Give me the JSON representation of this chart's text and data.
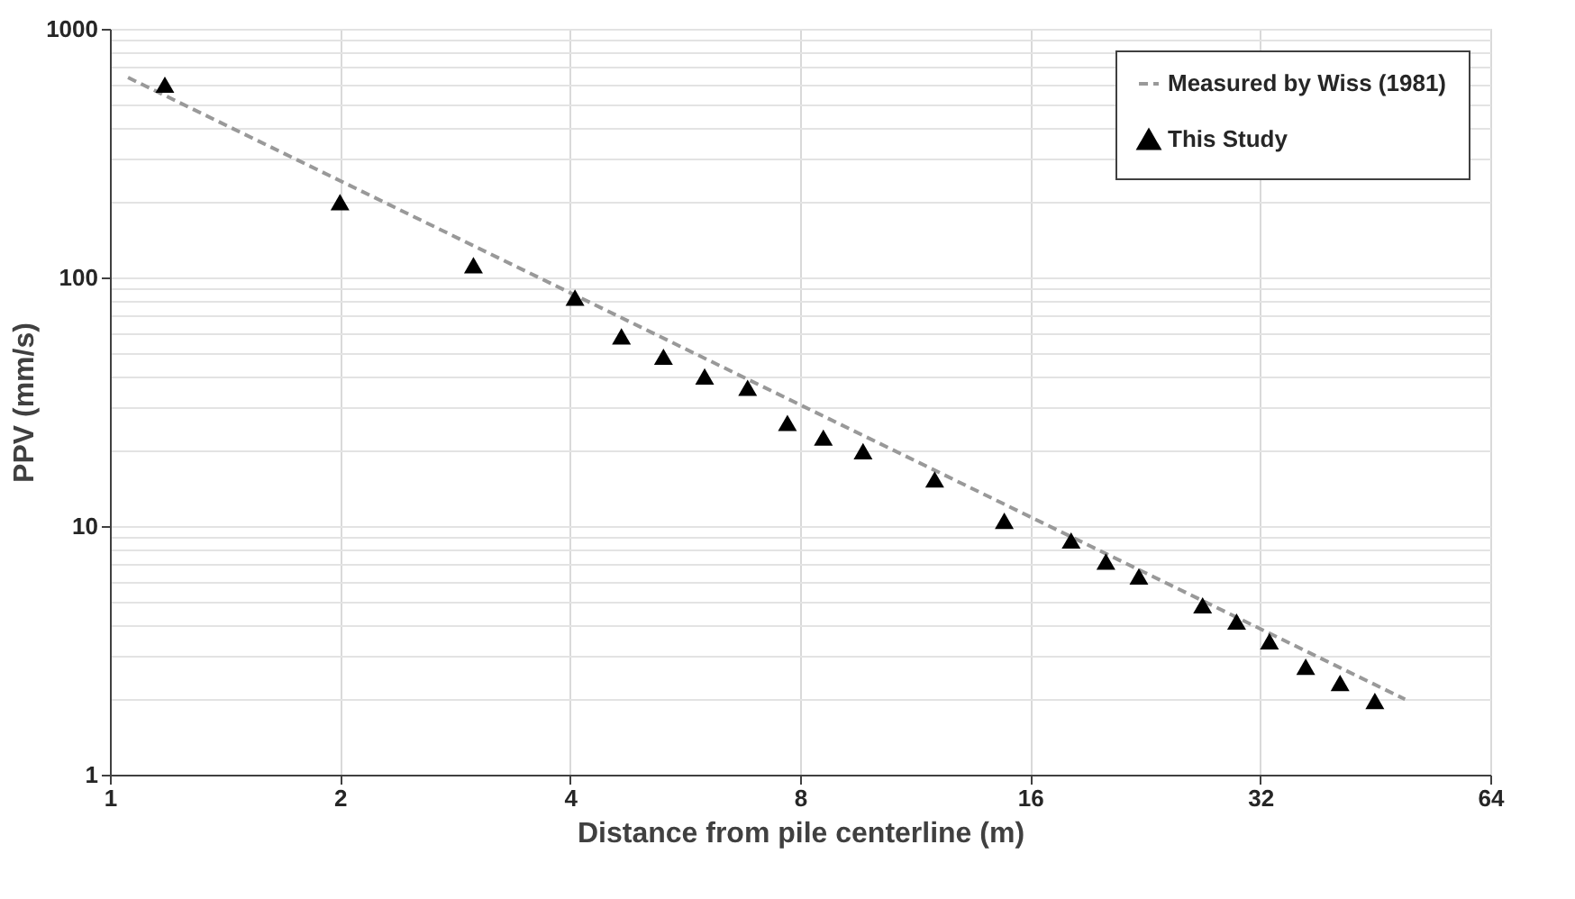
{
  "chart_data": {
    "type": "scatter",
    "xlabel": "Distance from pile centerline (m)",
    "ylabel": "PPV (mm/s)",
    "xlim": [
      1,
      64
    ],
    "xticks": [
      1,
      2,
      4,
      8,
      16,
      32,
      64
    ],
    "ylim": [
      1,
      1000
    ],
    "yticks": [
      1,
      {
        "value": 2,
        "label": null
      },
      {
        "value": 3,
        "label": null
      },
      {
        "value": 4,
        "label": null
      },
      {
        "value": 5,
        "label": null
      },
      {
        "value": 6,
        "label": null
      },
      {
        "value": 7,
        "label": null
      },
      {
        "value": 8,
        "label": null
      },
      {
        "value": 9,
        "label": null
      },
      10,
      {
        "value": 20,
        "label": null
      },
      {
        "value": 30,
        "label": null
      },
      {
        "value": 40,
        "label": null
      },
      {
        "value": 50,
        "label": null
      },
      {
        "value": 60,
        "label": null
      },
      {
        "value": 70,
        "label": null
      },
      {
        "value": 80,
        "label": null
      },
      {
        "value": 90,
        "label": null
      },
      100,
      {
        "value": 200,
        "label": null
      },
      {
        "value": 300,
        "label": null
      },
      {
        "value": 400,
        "label": null
      },
      {
        "value": 500,
        "label": null
      },
      {
        "value": 600,
        "label": null
      },
      {
        "value": 700,
        "label": null
      },
      {
        "value": 800,
        "label": null
      },
      {
        "value": 900,
        "label": null
      },
      1000
    ],
    "log": "xy",
    "grid": true,
    "legend": "top right",
    "series": [
      {
        "name": "Measured by Wiss (1981)",
        "type": "line",
        "line_style": "dashed",
        "marker": "none",
        "color": "#999999",
        "x": [
          1.056,
          49.5
        ],
        "values": [
          637,
          2.01
        ]
      },
      {
        "name": "This Study",
        "marker": "triangle",
        "color": "#000000",
        "x": [
          1.18,
          2.0,
          2.99,
          4.06,
          4.67,
          5.3,
          6.0,
          6.83,
          7.7,
          8.58,
          9.67,
          12.0,
          14.8,
          18.1,
          20.1,
          22.2,
          26.9,
          29.8,
          32.9,
          36.7,
          40.7,
          45.2
        ],
        "values": [
          596,
          201,
          112,
          83,
          58,
          48,
          40,
          36,
          26,
          22.7,
          20,
          15.4,
          10.5,
          8.75,
          7.2,
          6.27,
          4.8,
          4.13,
          3.44,
          2.72,
          2.34,
          1.98
        ]
      }
    ]
  }
}
